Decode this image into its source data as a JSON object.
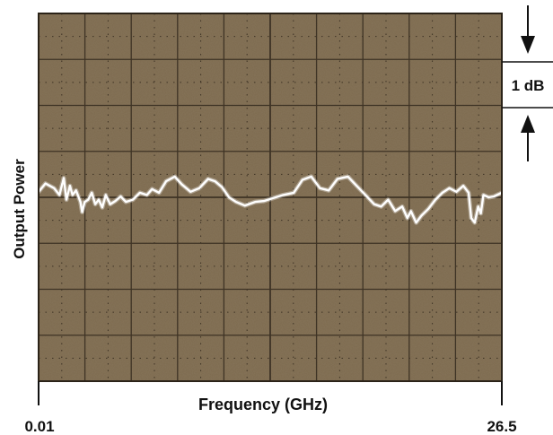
{
  "chart_data": {
    "type": "line",
    "title": "",
    "xlabel": "Frequency (GHz)",
    "ylabel": "Output Power",
    "x_tick_labels": [
      "0.01",
      "26.5"
    ],
    "xlim": [
      0.01,
      26.5
    ],
    "ylim": [
      -4,
      4
    ],
    "y_unit": "dB",
    "scale_annotation": "1 dB",
    "grid": true,
    "colors": {
      "screen": "#7d6a4e",
      "grid": "#3e3325",
      "trace": "#ffffff"
    },
    "series": [
      {
        "values": [
          [
            0.01,
            0.12
          ],
          [
            0.4,
            0.3
          ],
          [
            0.9,
            0.2
          ],
          [
            1.2,
            0.05
          ],
          [
            1.45,
            0.42
          ],
          [
            1.6,
            -0.05
          ],
          [
            1.8,
            0.25
          ],
          [
            1.95,
            0.05
          ],
          [
            2.15,
            0.15
          ],
          [
            2.4,
            -0.1
          ],
          [
            2.5,
            -0.32
          ],
          [
            2.65,
            -0.1
          ],
          [
            2.85,
            -0.05
          ],
          [
            3.05,
            0.1
          ],
          [
            3.25,
            -0.15
          ],
          [
            3.45,
            -0.05
          ],
          [
            3.65,
            -0.22
          ],
          [
            3.85,
            0.05
          ],
          [
            4.1,
            -0.15
          ],
          [
            4.4,
            -0.08
          ],
          [
            4.7,
            0.02
          ],
          [
            5.0,
            -0.1
          ],
          [
            5.4,
            -0.05
          ],
          [
            5.8,
            0.1
          ],
          [
            6.2,
            0.05
          ],
          [
            6.5,
            0.18
          ],
          [
            6.9,
            0.1
          ],
          [
            7.3,
            0.35
          ],
          [
            7.8,
            0.45
          ],
          [
            8.2,
            0.28
          ],
          [
            8.7,
            0.12
          ],
          [
            9.2,
            0.2
          ],
          [
            9.7,
            0.4
          ],
          [
            10.1,
            0.35
          ],
          [
            10.5,
            0.22
          ],
          [
            10.9,
            0.0
          ],
          [
            11.3,
            -0.1
          ],
          [
            11.8,
            -0.18
          ],
          [
            12.4,
            -0.1
          ],
          [
            12.9,
            -0.08
          ],
          [
            13.4,
            -0.02
          ],
          [
            14.0,
            0.05
          ],
          [
            14.6,
            0.1
          ],
          [
            15.1,
            0.38
          ],
          [
            15.6,
            0.45
          ],
          [
            16.1,
            0.2
          ],
          [
            16.6,
            0.15
          ],
          [
            17.1,
            0.4
          ],
          [
            17.7,
            0.45
          ],
          [
            18.2,
            0.25
          ],
          [
            18.7,
            0.05
          ],
          [
            19.2,
            -0.15
          ],
          [
            19.6,
            -0.2
          ],
          [
            20.0,
            -0.05
          ],
          [
            20.4,
            -0.3
          ],
          [
            20.8,
            -0.2
          ],
          [
            21.1,
            -0.45
          ],
          [
            21.3,
            -0.3
          ],
          [
            21.6,
            -0.55
          ],
          [
            21.9,
            -0.4
          ],
          [
            22.3,
            -0.25
          ],
          [
            22.7,
            -0.05
          ],
          [
            23.1,
            0.1
          ],
          [
            23.5,
            0.2
          ],
          [
            23.9,
            0.12
          ],
          [
            24.3,
            0.25
          ],
          [
            24.6,
            0.1
          ],
          [
            24.75,
            -0.45
          ],
          [
            24.95,
            -0.55
          ],
          [
            25.15,
            -0.2
          ],
          [
            25.3,
            -0.35
          ],
          [
            25.45,
            0.05
          ],
          [
            25.75,
            0.0
          ],
          [
            26.05,
            0.02
          ],
          [
            26.5,
            0.1
          ]
        ]
      }
    ]
  }
}
